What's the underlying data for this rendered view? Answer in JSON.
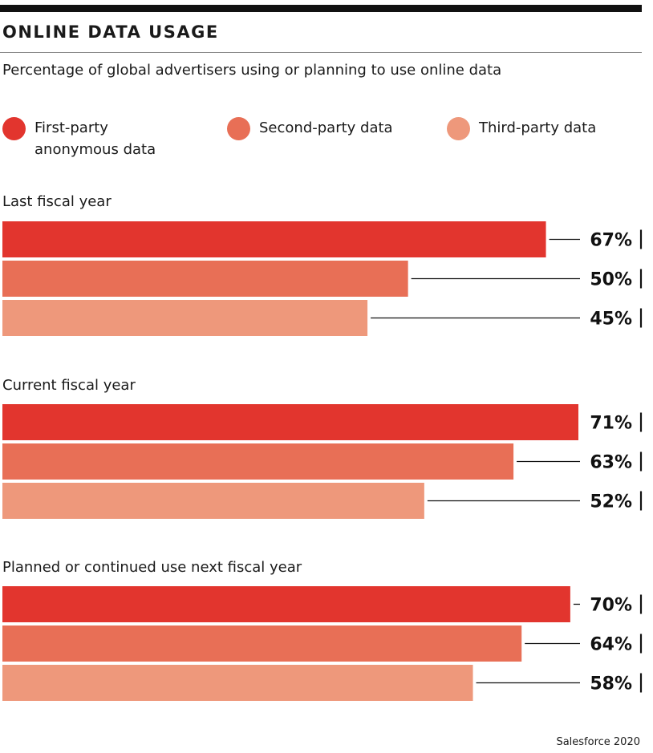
{
  "header": {
    "title": "ONLINE DATA USAGE",
    "subtitle": "Percentage of global advertisers using or planning to use online data"
  },
  "legend": [
    {
      "label_line1": "First-party",
      "label_line2": "anonymous data",
      "color": "#e2352e"
    },
    {
      "label_line1": "Second-party data",
      "label_line2": "",
      "color": "#e86f56"
    },
    {
      "label_line1": "Third-party data",
      "label_line2": "",
      "color": "#ee987b"
    }
  ],
  "source": "Salesforce 2020",
  "chart_data": {
    "type": "bar",
    "orientation": "horizontal",
    "title": "ONLINE DATA USAGE",
    "subtitle": "Percentage of global advertisers using or planning to use online data",
    "categories": [
      "Last fiscal year",
      "Current fiscal year",
      "Planned or continued use next fiscal year"
    ],
    "series": [
      {
        "name": "First-party anonymous data",
        "color": "#e2352e",
        "values": [
          67,
          71,
          70
        ]
      },
      {
        "name": "Second-party data",
        "color": "#e86f56",
        "values": [
          50,
          63,
          64
        ]
      },
      {
        "name": "Third-party data",
        "color": "#ee987b",
        "values": [
          45,
          52,
          58
        ]
      }
    ],
    "value_suffix": "%",
    "xlim": [
      0,
      71
    ],
    "legend_position": "top",
    "grid": false
  }
}
